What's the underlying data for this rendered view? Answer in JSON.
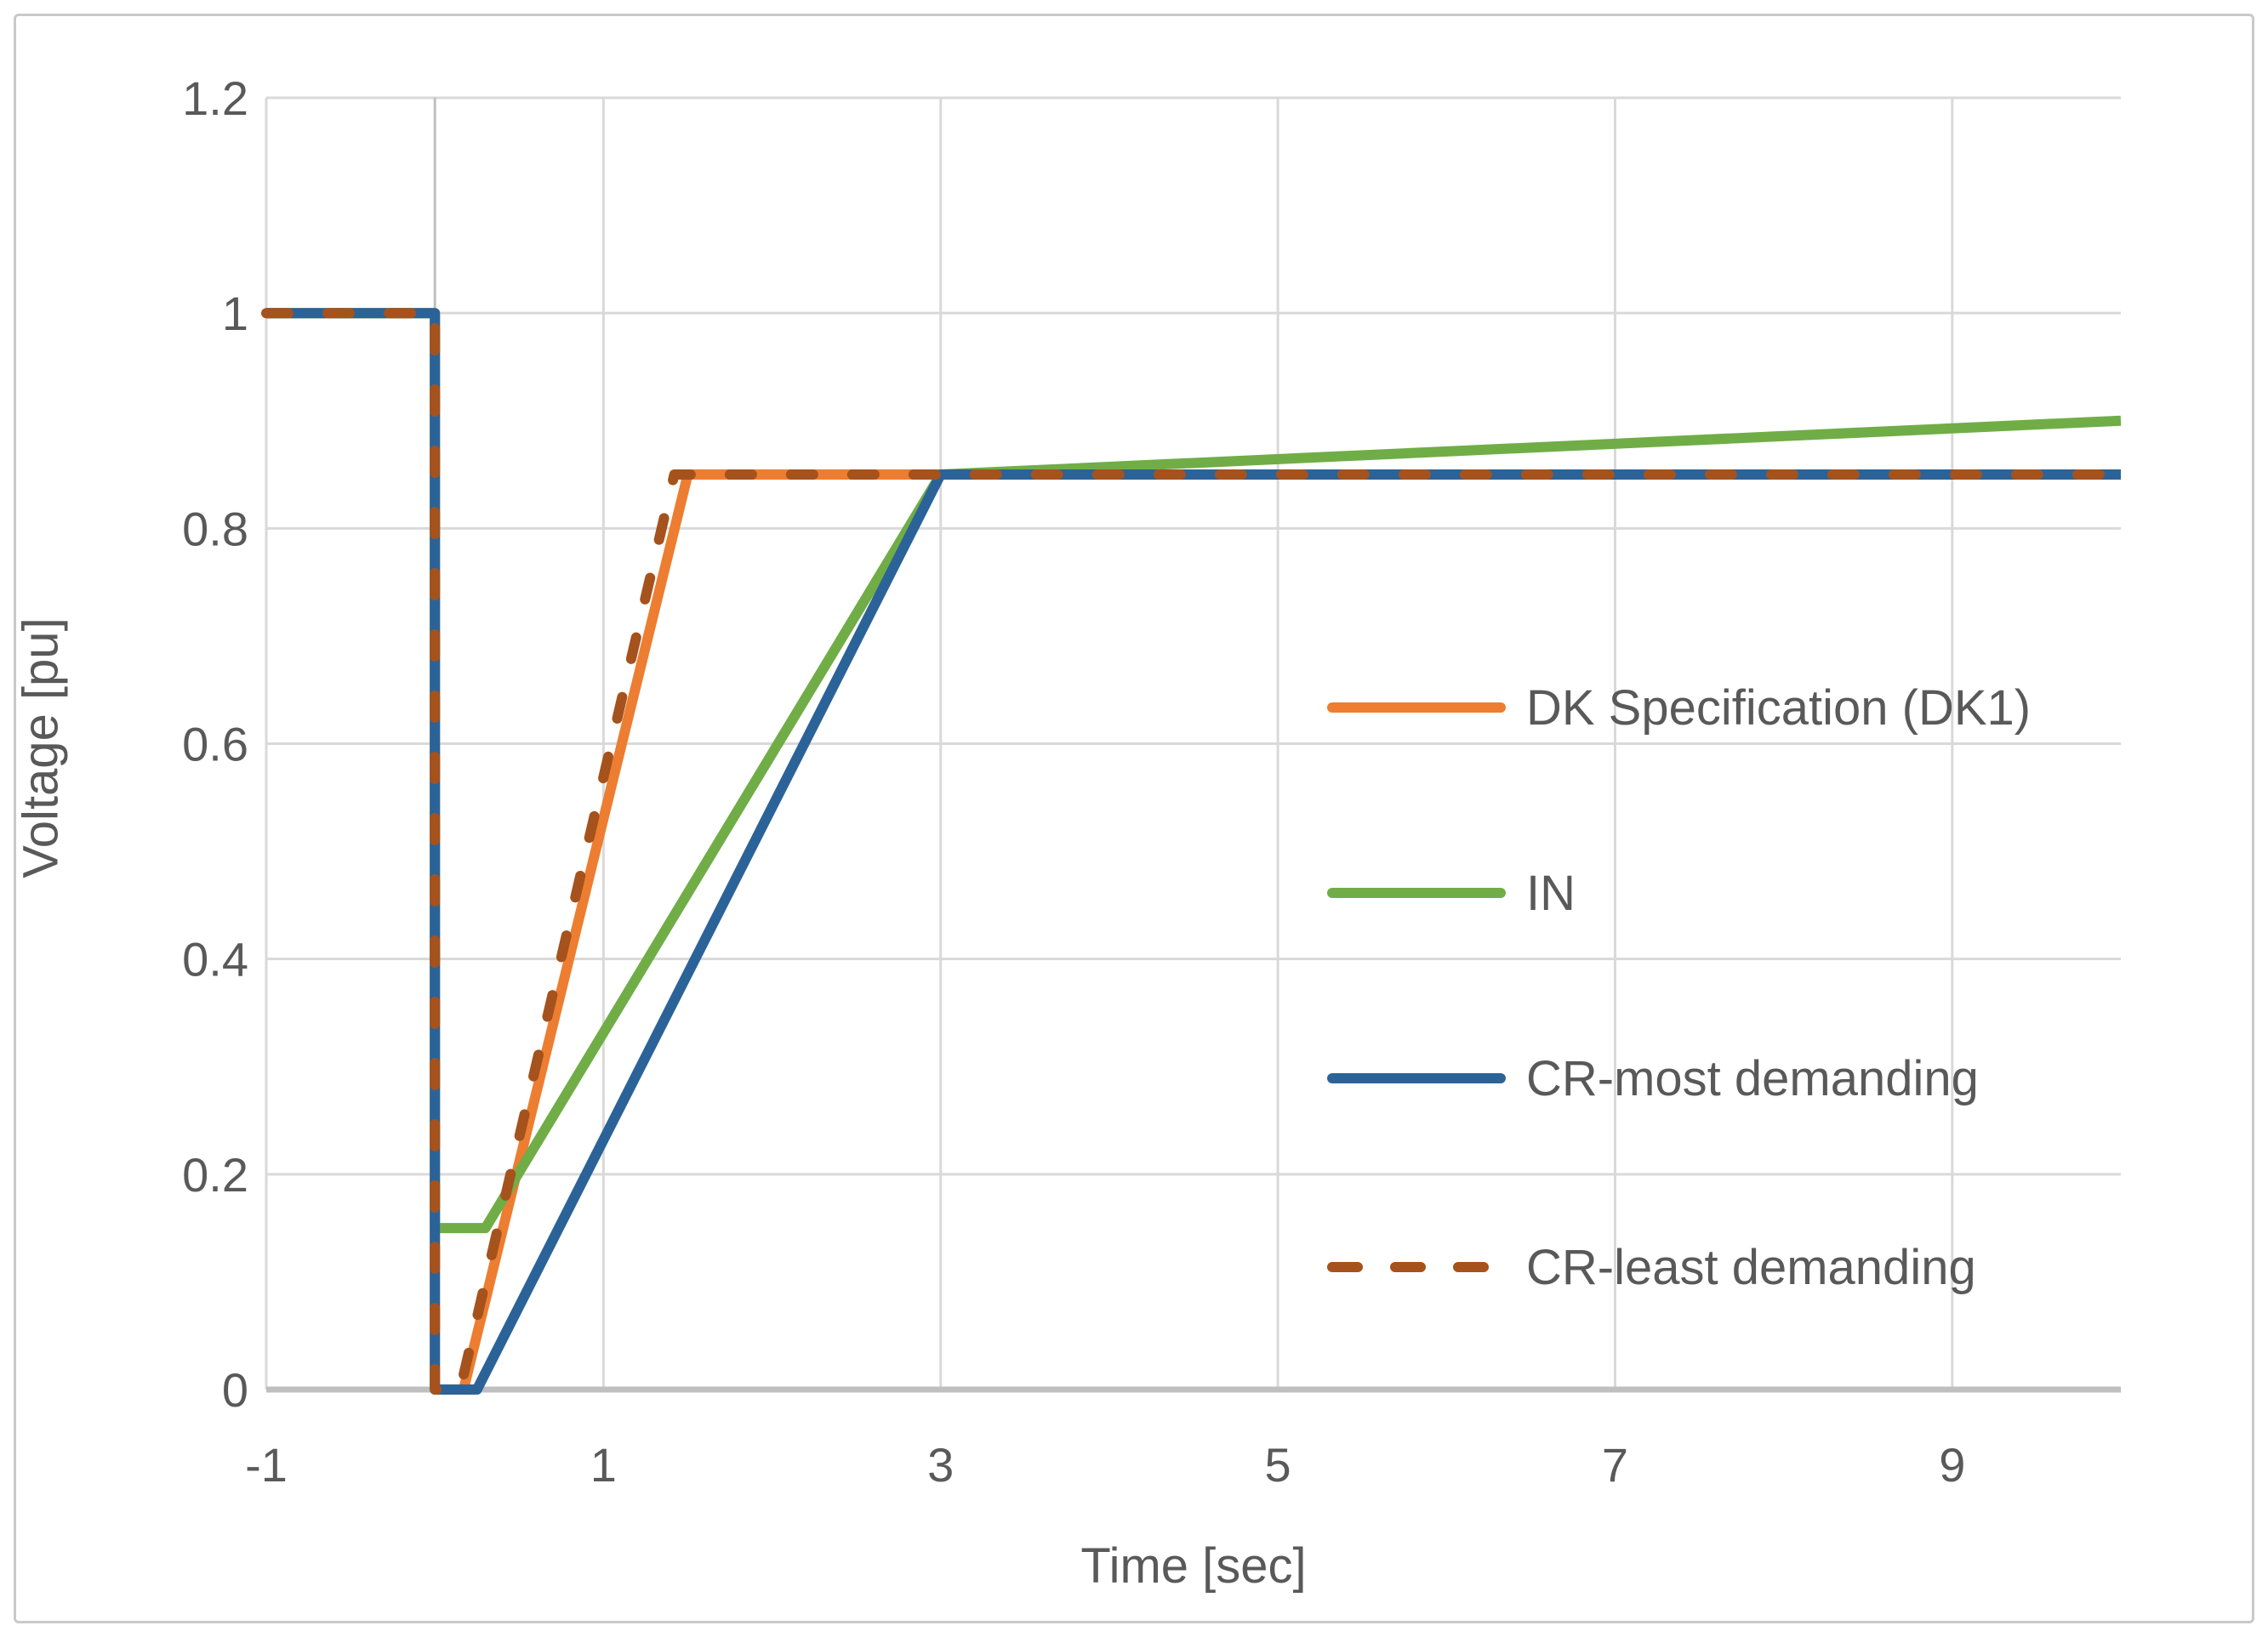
{
  "chart_data": {
    "type": "line",
    "title": "",
    "xlabel": "Time [sec]",
    "ylabel": "Voltage [pu]",
    "xlim": [
      -1,
      10
    ],
    "ylim": [
      0,
      1.2
    ],
    "x_ticks": [
      -1,
      1,
      3,
      5,
      7,
      9
    ],
    "x_tick_labels": [
      "-1",
      "1",
      "3",
      "5",
      "7",
      "9"
    ],
    "y_ticks": [
      0,
      0.2,
      0.4,
      0.6,
      0.8,
      1,
      1.2
    ],
    "y_tick_labels": [
      "0",
      "0.2",
      "0.4",
      "0.6",
      "0.8",
      "1",
      "1.2"
    ],
    "grid": true,
    "legend_position": "inside-right",
    "plateau_value": 0.85,
    "series": [
      {
        "name": "DK Specification (DK1)",
        "color": "#ED7D31",
        "style": "solid",
        "points": [
          [
            -1,
            1
          ],
          [
            0,
            1
          ],
          [
            0,
            0
          ],
          [
            0.17,
            0
          ],
          [
            1.5,
            0.85
          ],
          [
            10,
            0.85
          ]
        ]
      },
      {
        "name": "IN",
        "color": "#70AD47",
        "style": "solid",
        "points": [
          [
            -1,
            1
          ],
          [
            0,
            1
          ],
          [
            0,
            0.15
          ],
          [
            0.3,
            0.15
          ],
          [
            3,
            0.85
          ],
          [
            10,
            0.9
          ]
        ]
      },
      {
        "name": "CR-most demanding",
        "color": "#2B6399",
        "style": "solid",
        "points": [
          [
            -1,
            1
          ],
          [
            0,
            1
          ],
          [
            0,
            0
          ],
          [
            0.25,
            0
          ],
          [
            3,
            0.85
          ],
          [
            10,
            0.85
          ]
        ]
      },
      {
        "name": "CR-least demanding",
        "color": "#A5521D",
        "style": "dashed",
        "points": [
          [
            -1,
            1
          ],
          [
            0,
            1
          ],
          [
            0,
            0
          ],
          [
            0.15,
            0
          ],
          [
            1.42,
            0.85
          ],
          [
            10,
            0.85
          ]
        ]
      }
    ],
    "colors": {
      "gridline": "#D9D9D9",
      "axis_line": "#BFBFBF",
      "tick_text": "#595959",
      "background": "#FFFFFF"
    }
  }
}
